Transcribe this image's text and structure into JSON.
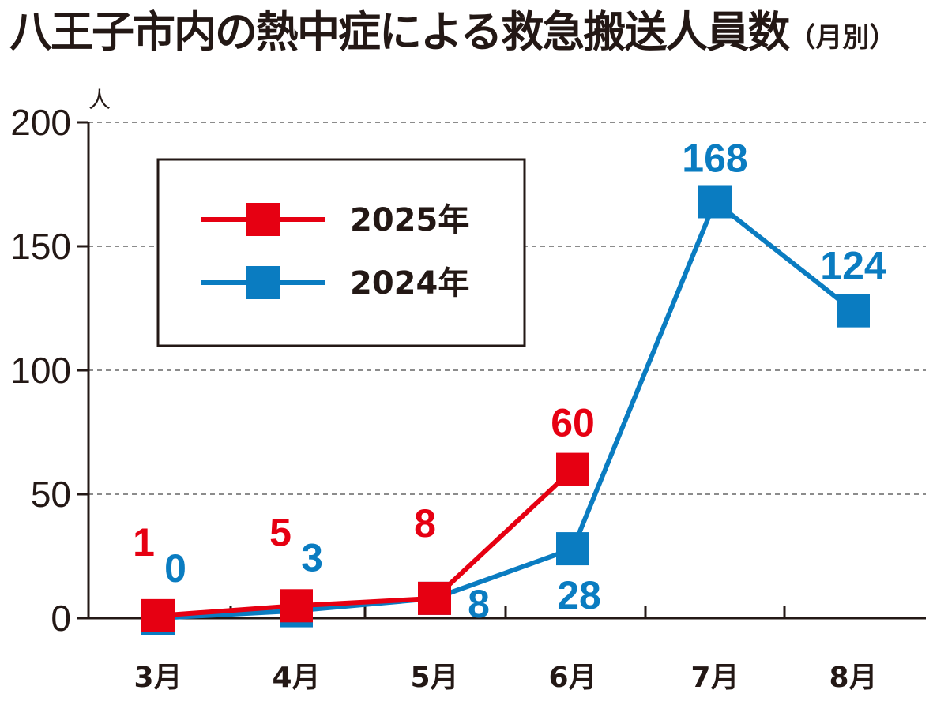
{
  "chart_data": {
    "type": "line",
    "title": "八王子市内の熱中症による救急搬送人員数",
    "subtitle": "（月別）",
    "ylabel": "人",
    "xlabel": "",
    "ylim": [
      0,
      200
    ],
    "yticks": [
      0,
      50,
      100,
      150,
      200
    ],
    "grid": true,
    "legend_position": "top-left",
    "categories": [
      "3月",
      "4月",
      "5月",
      "6月",
      "7月",
      "8月"
    ],
    "series": [
      {
        "name": "2025年",
        "color": "#e60012",
        "values": [
          1,
          5,
          8,
          60,
          null,
          null
        ]
      },
      {
        "name": "2024年",
        "color": "#0a7cc1",
        "values": [
          0,
          3,
          8,
          28,
          168,
          124
        ]
      }
    ]
  }
}
